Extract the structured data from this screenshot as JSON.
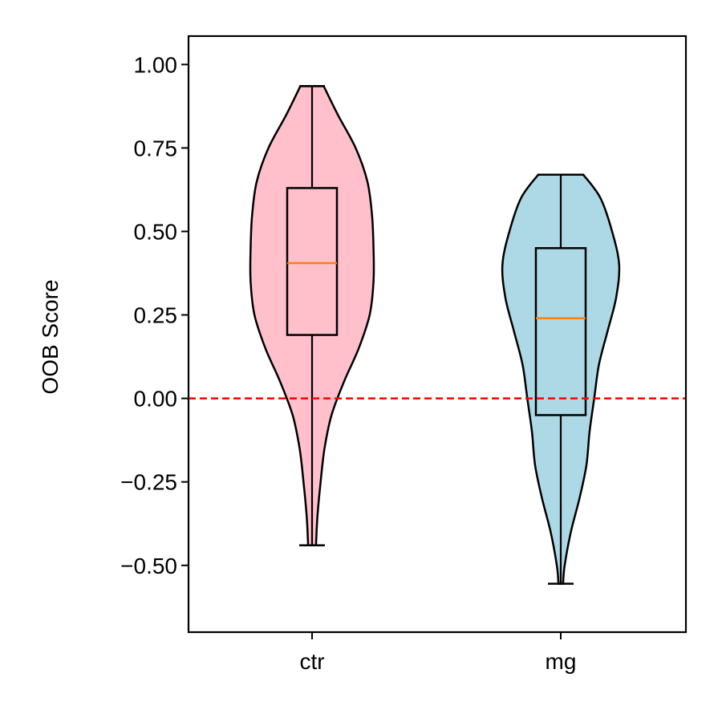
{
  "chart_data": {
    "type": "violin",
    "categories": [
      "ctr",
      "mg"
    ],
    "ylabel": "OOB Score",
    "xlabel": "",
    "title": "",
    "ylim": [
      -0.7,
      1.085
    ],
    "yticks": [
      1.0,
      0.75,
      0.5,
      0.25,
      0.0,
      -0.25,
      -0.5
    ],
    "ytick_labels": [
      "1.00",
      "0.75",
      "0.50",
      "0.25",
      "0.00",
      "−0.25",
      "−0.50"
    ],
    "reference_line": {
      "y": 0.0,
      "color": "#ff0000",
      "style": "dashed"
    },
    "groups": [
      {
        "name": "ctr",
        "fill": "#ffc0cb",
        "min": -0.44,
        "q1": 0.19,
        "median": 0.405,
        "q3": 0.63,
        "max": 0.935,
        "density": [
          [
            0.935,
            0.15
          ],
          [
            0.85,
            0.33
          ],
          [
            0.75,
            0.56
          ],
          [
            0.65,
            0.71
          ],
          [
            0.55,
            0.77
          ],
          [
            0.45,
            0.79
          ],
          [
            0.35,
            0.79
          ],
          [
            0.25,
            0.74
          ],
          [
            0.15,
            0.6
          ],
          [
            0.05,
            0.41
          ],
          [
            -0.05,
            0.25
          ],
          [
            -0.15,
            0.16
          ],
          [
            -0.25,
            0.11
          ],
          [
            -0.35,
            0.07
          ],
          [
            -0.44,
            0.05
          ]
        ]
      },
      {
        "name": "mg",
        "fill": "#add8e6",
        "min": -0.555,
        "q1": -0.05,
        "median": 0.24,
        "q3": 0.45,
        "max": 0.67,
        "density": [
          [
            0.67,
            0.29
          ],
          [
            0.6,
            0.51
          ],
          [
            0.5,
            0.66
          ],
          [
            0.4,
            0.75
          ],
          [
            0.3,
            0.71
          ],
          [
            0.2,
            0.6
          ],
          [
            0.1,
            0.49
          ],
          [
            0.0,
            0.43
          ],
          [
            -0.1,
            0.37
          ],
          [
            -0.2,
            0.33
          ],
          [
            -0.3,
            0.24
          ],
          [
            -0.4,
            0.13
          ],
          [
            -0.5,
            0.05
          ],
          [
            -0.555,
            0.03
          ]
        ]
      }
    ],
    "colors": {
      "median": "#ff7f0e",
      "edge": "#000000"
    }
  }
}
